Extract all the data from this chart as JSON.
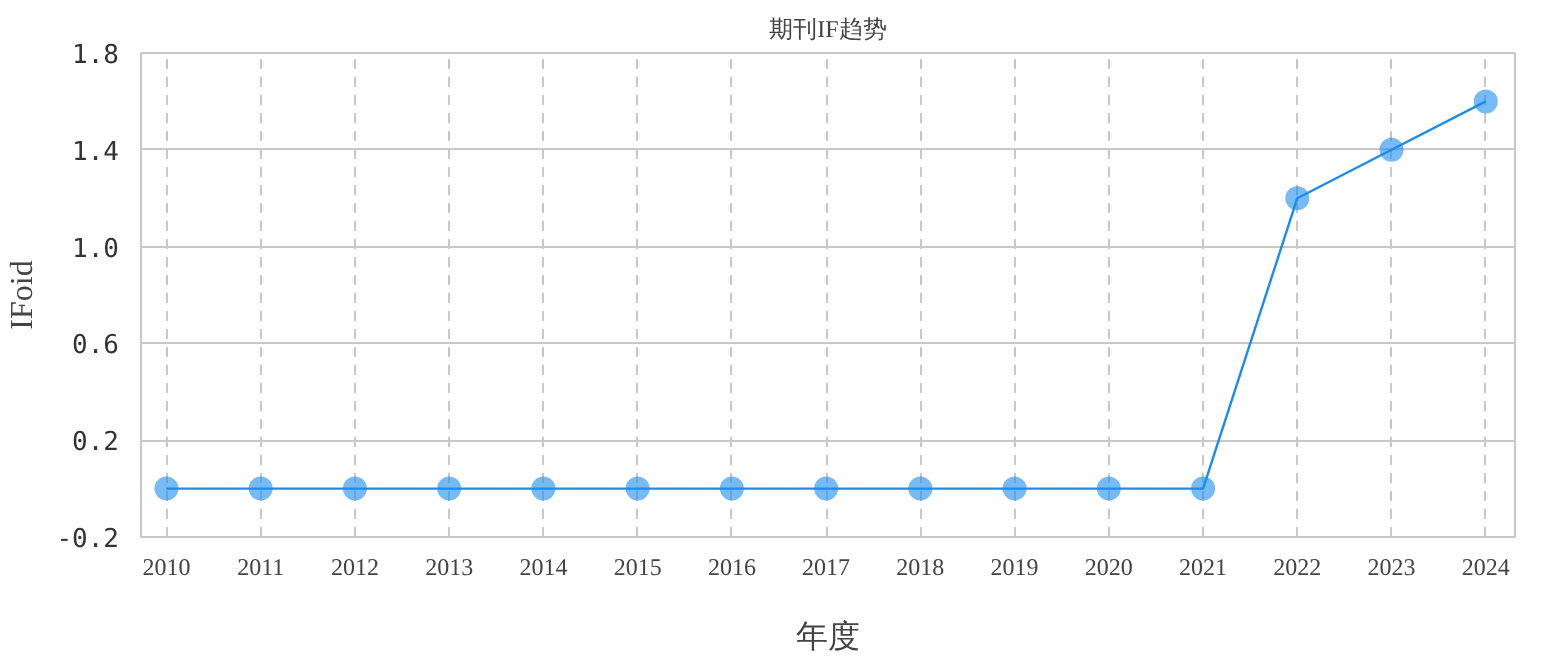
{
  "chart_data": {
    "type": "line",
    "title": "期刊IF趋势",
    "xlabel": "年度",
    "ylabel": "IFoid",
    "categories": [
      "2010",
      "2011",
      "2012",
      "2013",
      "2014",
      "2015",
      "2016",
      "2017",
      "2018",
      "2019",
      "2020",
      "2021",
      "2022",
      "2023",
      "2024"
    ],
    "series": [
      {
        "color": "#1a8cf0",
        "values": [
          0,
          0,
          0,
          0,
          0,
          0,
          0,
          0,
          0,
          0,
          0,
          0,
          1.2,
          1.4,
          1.6
        ]
      }
    ],
    "ylim": [
      -0.2,
      1.8
    ],
    "yticks": [
      -0.2,
      0.2,
      0.6,
      {
        "value": 1,
        "label": "1.0"
      },
      1.4,
      1.8
    ],
    "grid": true,
    "marker": "circle",
    "line_style": "solid"
  }
}
